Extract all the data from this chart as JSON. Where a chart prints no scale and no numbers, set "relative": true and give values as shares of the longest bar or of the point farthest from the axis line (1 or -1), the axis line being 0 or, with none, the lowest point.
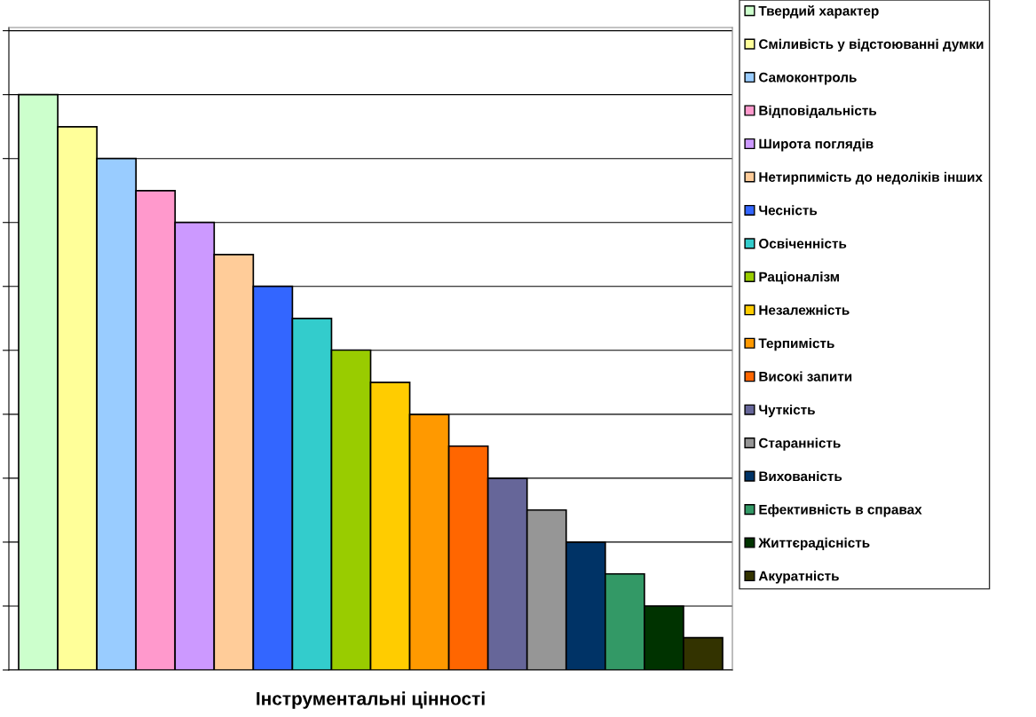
{
  "chart_data": {
    "type": "bar",
    "xlabel": "Інструментальні цінності",
    "relative": true,
    "grid": "y",
    "legend": "right",
    "categories": [
      null
    ],
    "series": [
      {
        "name": "Твердий характер",
        "color": "#ccffcc",
        "values": [
          1
        ]
      },
      {
        "name": "Сміливість у відстоюванні думки",
        "color": "#ffff99",
        "values": [
          0.944
        ]
      },
      {
        "name": "Самоконтроль",
        "color": "#99ccff",
        "values": [
          0.889
        ]
      },
      {
        "name": "Відповідальність",
        "color": "#ff99cc",
        "values": [
          0.833
        ]
      },
      {
        "name": "Широта поглядів",
        "color": "#cc99ff",
        "values": [
          0.778
        ]
      },
      {
        "name": "Нетирпимість до недоліків інших",
        "color": "#ffcc99",
        "values": [
          0.722
        ]
      },
      {
        "name": "Чесність",
        "color": "#3366ff",
        "values": [
          0.667
        ]
      },
      {
        "name": "Освіченність",
        "color": "#33cccc",
        "values": [
          0.611
        ]
      },
      {
        "name": "Раціоналізм",
        "color": "#99cc00",
        "values": [
          0.556
        ]
      },
      {
        "name": "Незалежність",
        "color": "#ffcc00",
        "values": [
          0.5
        ]
      },
      {
        "name": "Терпимість",
        "color": "#ff9900",
        "values": [
          0.444
        ]
      },
      {
        "name": "Високі запити",
        "color": "#ff6600",
        "values": [
          0.389
        ]
      },
      {
        "name": "Чуткість",
        "color": "#666699",
        "values": [
          0.333
        ]
      },
      {
        "name": "Старанність",
        "color": "#969696",
        "values": [
          0.278
        ]
      },
      {
        "name": "Вихованість",
        "color": "#003366",
        "values": [
          0.222
        ]
      },
      {
        "name": "Ефективність в справах",
        "color": "#339966",
        "values": [
          0.167
        ]
      },
      {
        "name": "Життєрадісність",
        "color": "#003300",
        "values": [
          0.111
        ]
      },
      {
        "name": "Акуратність",
        "color": "#333300",
        "values": [
          0.056
        ]
      }
    ]
  }
}
